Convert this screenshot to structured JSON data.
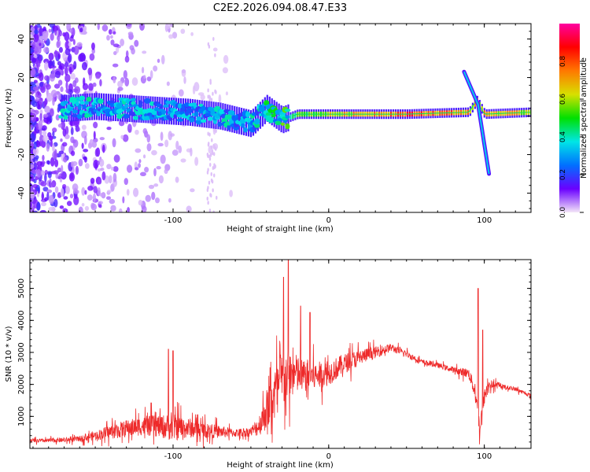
{
  "chart_data": [
    {
      "type": "heatmap",
      "title": "C2E2.2026.094.08.47.E33",
      "xlabel": "Height of straight line (km)",
      "ylabel": "Frequency (Hz)",
      "xlim": [
        -192,
        130
      ],
      "ylim": [
        -50,
        48
      ],
      "xticks": [
        -100,
        0,
        100
      ],
      "xtick_labels": [
        "-100",
        "0",
        "100"
      ],
      "yticks": [
        -40,
        -20,
        0,
        20,
        40
      ],
      "ytick_labels": [
        "-40",
        "-20",
        "0",
        "20",
        "40"
      ],
      "colorbar": {
        "label": "Normalized spectral amplitude",
        "range": [
          0,
          1
        ],
        "ticks": [
          0.0,
          0.2,
          0.4,
          0.6,
          0.8
        ],
        "tick_labels": [
          "0.0",
          "0.2",
          "0.4",
          "0.6",
          "0.8"
        ],
        "colors": [
          "#f4e6f8",
          "#6a00ff",
          "#0070ff",
          "#00e6e6",
          "#00e000",
          "#d8e000",
          "#ff7800",
          "#ff0000",
          "#ff00a0"
        ]
      },
      "ridge": {
        "x": [
          -170,
          -150,
          -130,
          -110,
          -90,
          -70,
          -50,
          -40,
          -30,
          -20,
          0,
          50,
          90,
          95,
          100,
          130
        ],
        "freq": [
          4,
          5,
          4,
          3,
          2,
          0,
          -4,
          4,
          -2,
          1,
          1,
          1,
          2,
          8,
          1,
          2
        ],
        "amplitude": [
          0.3,
          0.32,
          0.3,
          0.28,
          0.28,
          0.3,
          0.3,
          0.35,
          0.4,
          0.5,
          0.6,
          0.8,
          0.7,
          0.6,
          0.7,
          0.6
        ]
      },
      "spike": {
        "x": [
          87,
          96,
          103
        ],
        "freq": [
          23,
          6,
          -30
        ]
      }
    },
    {
      "type": "line",
      "xlabel": "Height of straight line (km)",
      "ylabel": "SNR (10 * v/v)",
      "xlim": [
        -192,
        130
      ],
      "ylim": [
        0,
        5900
      ],
      "xticks": [
        -100,
        0,
        100
      ],
      "xtick_labels": [
        "-100",
        "0",
        "100"
      ],
      "yticks": [
        1000,
        2000,
        3000,
        4000,
        5000
      ],
      "ytick_labels": [
        "1000",
        "2000",
        "3000",
        "4000",
        "5000"
      ],
      "series": [
        {
          "name": "SNR",
          "color": "#ee2a2a",
          "x": [
            -192,
            -170,
            -160,
            -150,
            -140,
            -130,
            -120,
            -110,
            -100,
            -90,
            -80,
            -70,
            -60,
            -50,
            -45,
            -40,
            -35,
            -30,
            -25,
            -20,
            -15,
            -10,
            0,
            10,
            20,
            30,
            40,
            50,
            60,
            70,
            80,
            90,
            94,
            97,
            100,
            103,
            110,
            120,
            130
          ],
          "values": [
            230,
            260,
            300,
            400,
            520,
            620,
            700,
            700,
            650,
            640,
            560,
            520,
            480,
            520,
            700,
            1200,
            1700,
            2100,
            2300,
            2300,
            2250,
            2250,
            2350,
            2650,
            2850,
            3000,
            3150,
            2950,
            2700,
            2600,
            2450,
            2350,
            1800,
            600,
            1600,
            2000,
            1950,
            1850,
            1650
          ],
          "noise": [
            80,
            100,
            130,
            200,
            320,
            380,
            420,
            500,
            600,
            450,
            350,
            280,
            180,
            220,
            450,
            900,
            1200,
            1300,
            1100,
            900,
            700,
            650,
            550,
            450,
            350,
            260,
            180,
            150,
            120,
            120,
            130,
            220,
            400,
            500,
            350,
            250,
            100,
            90,
            90
          ],
          "peaks": [
            {
              "x": -103,
              "y": 3100
            },
            {
              "x": -100,
              "y": 3050
            },
            {
              "x": -29,
              "y": 5350
            },
            {
              "x": -26,
              "y": 5900
            },
            {
              "x": -18,
              "y": 4450
            },
            {
              "x": -12,
              "y": 4250
            },
            {
              "x": 96,
              "y": 5000
            },
            {
              "x": 99,
              "y": 3700
            }
          ]
        }
      ]
    }
  ]
}
